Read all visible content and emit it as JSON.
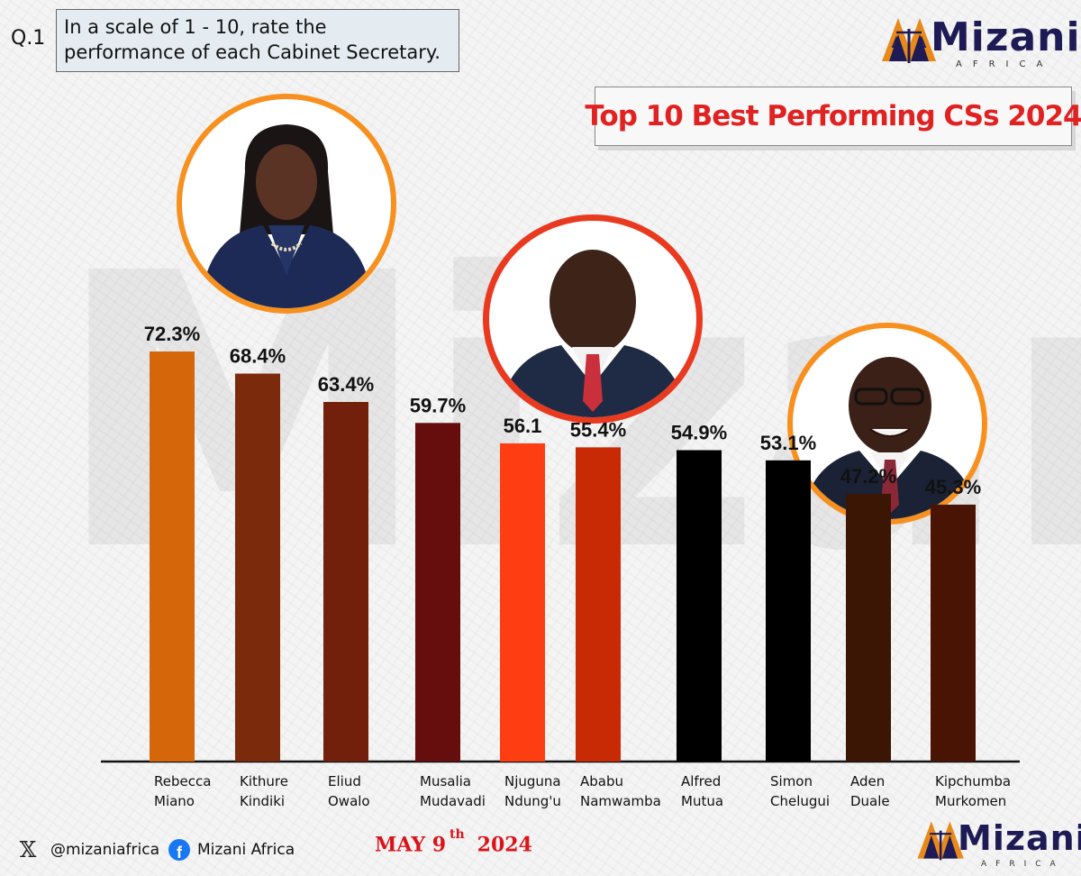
{
  "question": {
    "number": "Q.1",
    "text": "In a scale of 1 - 10, rate the performance of each Cabinet Secretary."
  },
  "brand": {
    "name": "Mizani",
    "subtitle": "AFRICA",
    "colors": {
      "navy": "#1e1a55",
      "orange": "#e8891c"
    }
  },
  "banner": {
    "title": "Top 10 Best Performing CSs 2024"
  },
  "chart_data": {
    "type": "bar",
    "title": "Top 10 Best Performing CSs 2024",
    "xlabel": "",
    "ylabel": "",
    "ylim": [
      0,
      80
    ],
    "grid": false,
    "categories": [
      "Rebecca Miano",
      "Kithure Kindiki",
      "Eliud Owalo",
      "Musalia Mudavadi",
      "Njuguna Ndung'u",
      "Ababu Namwamba",
      "Alfred Mutua",
      "Simon Chelugui",
      "Aden Duale",
      "Kipchumba Murkomen"
    ],
    "category_lines": [
      [
        "Rebecca",
        "Miano"
      ],
      [
        "Kithure",
        "Kindiki"
      ],
      [
        "Eliud",
        "Owalo"
      ],
      [
        "Musalia",
        "Mudavadi"
      ],
      [
        "Njuguna",
        "Ndung'u"
      ],
      [
        "Ababu",
        "Namwamba"
      ],
      [
        "Alfred",
        "Mutua"
      ],
      [
        "Simon",
        "Chelugui"
      ],
      [
        "Aden",
        "Duale"
      ],
      [
        "Kipchumba",
        "Murkomen"
      ]
    ],
    "values": [
      72.3,
      68.4,
      63.4,
      59.7,
      56.1,
      55.4,
      54.9,
      53.1,
      47.2,
      45.3
    ],
    "data_labels": [
      "72.3%",
      "68.4%",
      "63.4%",
      "59.7%",
      "56.1",
      "55.4%",
      "54.9%",
      "53.1%",
      "47.2%",
      "45.3%"
    ],
    "colors": [
      "#d5670a",
      "#7b2a0c",
      "#72200b",
      "#660e0e",
      "#ff3d12",
      "#c92a06",
      "#000000",
      "#000000",
      "#3c1604",
      "#4a1405"
    ]
  },
  "footer": {
    "x_handle": "@mizaniafrica",
    "facebook_name": "Mizani Africa",
    "date_main": "MAY 9",
    "date_sup": "th",
    "date_year": "2024"
  },
  "icons": {
    "x": "x-logo-icon",
    "facebook": "facebook-icon",
    "logo": "mizani-scales-icon"
  }
}
